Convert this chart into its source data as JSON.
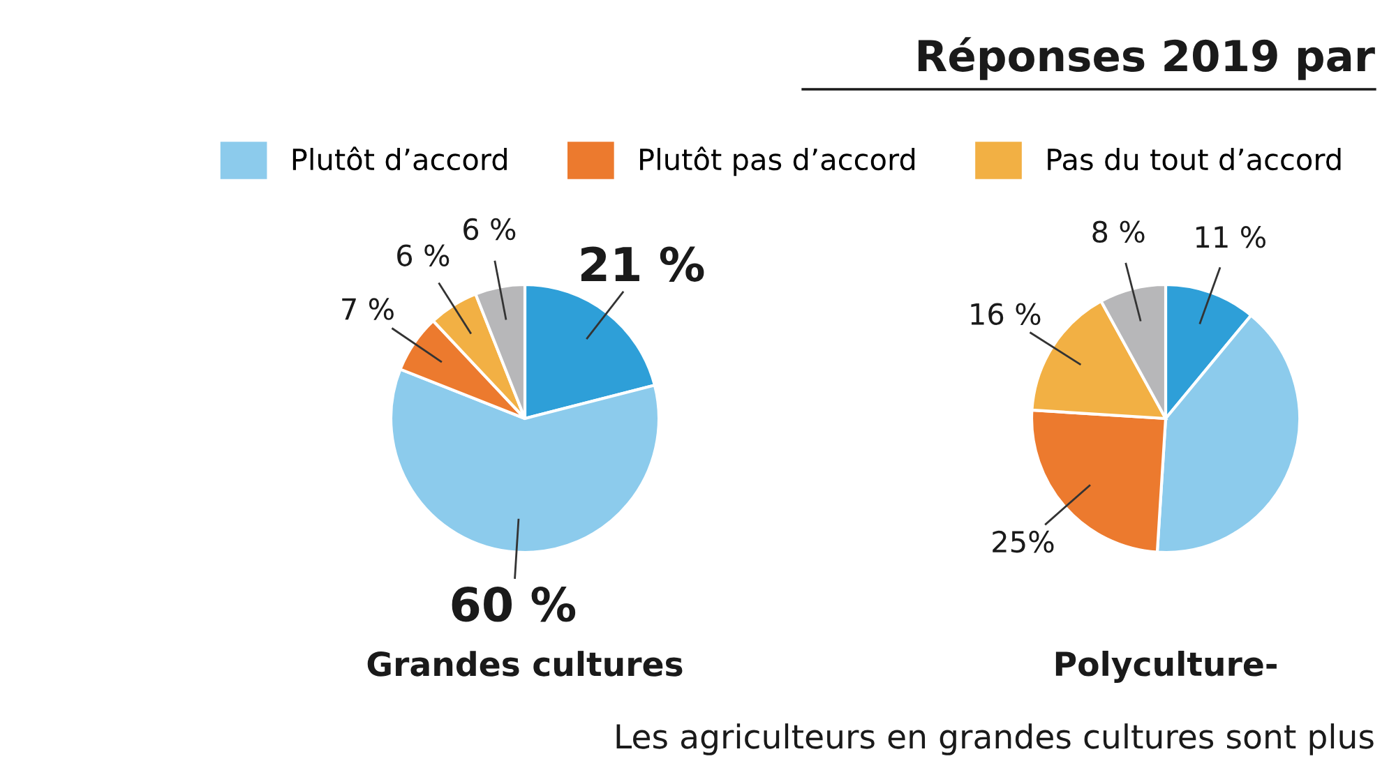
{
  "chart_data": [
    {
      "type": "pie",
      "title": "Grandes cultures",
      "categories": [
        null,
        "Plutôt d’accord",
        "Plutôt pas d’accord",
        "Pas du tout d’accord",
        null
      ],
      "values": [
        21,
        60,
        7,
        6,
        6
      ],
      "colors": [
        "#2e9fd8",
        "#8ccbec",
        "#ec7a2e",
        "#f2b044",
        "#b7b7b9"
      ],
      "value_labels": [
        "21 %",
        "60 %",
        "7 %",
        "6 %",
        "6 %"
      ],
      "legend": "top",
      "annotations": [
        "Réponses 2019 par",
        "Les agriculteurs en grandes cultures sont plus"
      ]
    },
    {
      "type": "pie",
      "title": "Polyculture-",
      "categories": [
        null,
        null,
        null,
        null,
        null
      ],
      "values": [
        11,
        40,
        25,
        16,
        8
      ],
      "colors": [
        "#2e9fd8",
        "#8ccbec",
        "#ec7a2e",
        "#f2b044",
        "#b7b7b9"
      ],
      "value_labels": [
        "11 %",
        null,
        "25%",
        "16 %",
        "8 %"
      ]
    }
  ]
}
